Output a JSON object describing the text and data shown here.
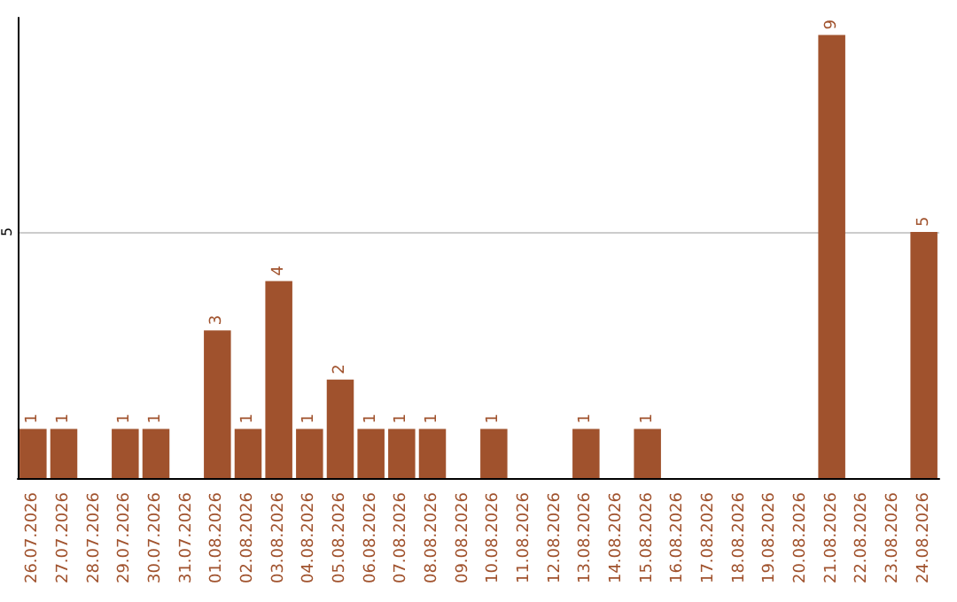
{
  "chart_data": {
    "type": "bar",
    "categories": [
      "26.07.2026",
      "27.07.2026",
      "28.07.2026",
      "29.07.2026",
      "30.07.2026",
      "31.07.2026",
      "01.08.2026",
      "02.08.2026",
      "03.08.2026",
      "04.08.2026",
      "05.08.2026",
      "06.08.2026",
      "07.08.2026",
      "08.08.2026",
      "09.08.2026",
      "10.08.2026",
      "11.08.2026",
      "12.08.2026",
      "13.08.2026",
      "14.08.2026",
      "15.08.2026",
      "16.08.2026",
      "17.08.2026",
      "18.08.2026",
      "19.08.2026",
      "20.08.2026",
      "21.08.2026",
      "22.08.2026",
      "23.08.2026",
      "24.08.2026"
    ],
    "values": [
      1,
      1,
      0,
      1,
      1,
      0,
      3,
      1,
      4,
      1,
      2,
      1,
      1,
      1,
      0,
      1,
      0,
      0,
      1,
      0,
      1,
      0,
      0,
      0,
      0,
      0,
      9,
      0,
      0,
      5
    ],
    "value_labels": [
      "1",
      "1",
      null,
      "1",
      "1",
      null,
      "3",
      "1",
      "4",
      "1",
      "2",
      "1",
      "1",
      "1",
      null,
      "1",
      null,
      null,
      "1",
      null,
      "1",
      null,
      null,
      null,
      null,
      null,
      "9",
      null,
      null,
      "5"
    ],
    "color": "#a0522d",
    "ylim": [
      0,
      9.35
    ],
    "yticks": [
      5
    ],
    "grid": "y"
  }
}
